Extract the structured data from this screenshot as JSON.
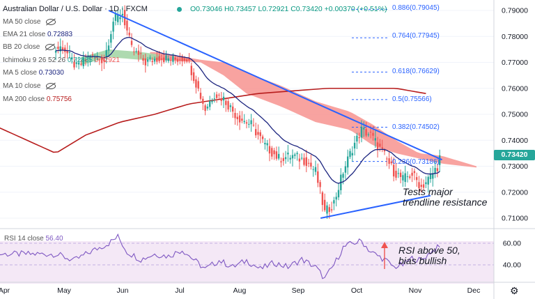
{
  "header": {
    "title": "Australian Dollar / U.S. Dollar · 1D · FXCM",
    "ohlc": "O0.73046 H0.73457 L0.72921 C0.73420 +0.00370 (+0.51%)"
  },
  "indicators": {
    "ma50": "MA 50 close",
    "ema21": "EMA 21 close",
    "ema21_value": "0.72883",
    "bb20": "BB 20 close",
    "ichimoku": "Ichimoku 9 26 52 26",
    "ichimoku_v1": "0.72885",
    "ichimoku_v2": "0.72921",
    "ma5": "MA 5 close",
    "ma5_value": "0.73030",
    "ma10": "MA 10 close",
    "ma200": "MA 200 close",
    "ma200_value": "0.75756"
  },
  "annotations": {
    "trend_line1": "Tests major",
    "trend_line2": "trendline resistance",
    "rsi_line1": "RSI above 50,",
    "rsi_line2": "bias bullish"
  },
  "rsi": {
    "label": "RSI 14 close",
    "value": "56.40"
  },
  "price_tag": "0.73420",
  "colors": {
    "bull": "#26a69a",
    "bear": "#ef5350",
    "trend": "#2962ff",
    "ema21": "#1a237e",
    "ma200": "#b71c1c",
    "rsi": "#7e57c2",
    "fib": "#2962ff",
    "cloud_bear": "#f7938f",
    "cloud_bull": "#a5d6a7"
  },
  "chart_data": {
    "type": "candlestick",
    "title": "Australian Dollar / U.S. Dollar · 1D · FXCM",
    "price_ylim": [
      0.705,
      0.792
    ],
    "rsi_ylim": [
      25,
      68
    ],
    "y_ticks": [
      "0.79000",
      "0.78000",
      "0.77000",
      "0.76000",
      "0.75000",
      "0.74000",
      "0.73000",
      "0.72000",
      "0.71000"
    ],
    "rsi_ticks": [
      "60.00",
      "40.00"
    ],
    "x_ticks": [
      "Apr",
      "May",
      "Jun",
      "Jul",
      "Aug",
      "Sep",
      "Oct",
      "Nov",
      "Dec"
    ],
    "price_key": [
      [
        -3,
        0.775
      ],
      [
        0,
        0.776
      ],
      [
        6,
        0.768
      ],
      [
        12,
        0.772
      ],
      [
        18,
        0.771
      ],
      [
        22,
        0.786
      ],
      [
        26,
        0.789
      ],
      [
        30,
        0.775
      ],
      [
        36,
        0.77
      ],
      [
        42,
        0.772
      ],
      [
        48,
        0.771
      ],
      [
        54,
        0.772
      ],
      [
        58,
        0.762
      ],
      [
        62,
        0.752
      ],
      [
        66,
        0.758
      ],
      [
        70,
        0.756
      ],
      [
        76,
        0.749
      ],
      [
        82,
        0.746
      ],
      [
        88,
        0.738
      ],
      [
        94,
        0.733
      ],
      [
        100,
        0.734
      ],
      [
        106,
        0.732
      ],
      [
        110,
        0.728
      ],
      [
        114,
        0.712
      ],
      [
        118,
        0.716
      ],
      [
        122,
        0.728
      ],
      [
        126,
        0.737
      ],
      [
        130,
        0.744
      ],
      [
        134,
        0.742
      ],
      [
        140,
        0.734
      ],
      [
        144,
        0.728
      ],
      [
        148,
        0.725
      ],
      [
        152,
        0.727
      ],
      [
        156,
        0.722
      ],
      [
        160,
        0.726
      ],
      [
        163,
        0.73
      ],
      [
        164,
        0.734
      ]
    ],
    "ma200_key": [
      [
        -3,
        0.735
      ],
      [
        10,
        0.742
      ],
      [
        25,
        0.747
      ],
      [
        40,
        0.75
      ],
      [
        55,
        0.754
      ],
      [
        70,
        0.756
      ],
      [
        85,
        0.758
      ],
      [
        100,
        0.759
      ],
      [
        115,
        0.76
      ],
      [
        130,
        0.76
      ],
      [
        145,
        0.76
      ],
      [
        158,
        0.758
      ]
    ],
    "fib_levels": [
      {
        "label": "0.886(0.79045)",
        "value": 0.79045
      },
      {
        "label": "0.764(0.77945)",
        "value": 0.77945
      },
      {
        "label": "0.618(0.76629)",
        "value": 0.76629
      },
      {
        "label": "0.5(0.75566)",
        "value": 0.75566
      },
      {
        "label": "0.382(0.74502)",
        "value": 0.74502
      },
      {
        "label": "0.236(0.73186)",
        "value": 0.73186
      }
    ],
    "descending_trendline": [
      [
        20,
        0.79
      ],
      [
        165,
        0.7325
      ]
    ],
    "ascending_trendline": [
      [
        114,
        0.71
      ],
      [
        160,
        0.7187
      ]
    ],
    "rsi_key": [
      [
        -3,
        50
      ],
      [
        5,
        44
      ],
      [
        12,
        52
      ],
      [
        20,
        60
      ],
      [
        24,
        66
      ],
      [
        28,
        52
      ],
      [
        34,
        45
      ],
      [
        40,
        50
      ],
      [
        46,
        48
      ],
      [
        52,
        54
      ],
      [
        58,
        43
      ],
      [
        62,
        36
      ],
      [
        68,
        44
      ],
      [
        74,
        38
      ],
      [
        80,
        44
      ],
      [
        86,
        36
      ],
      [
        92,
        42
      ],
      [
        98,
        38
      ],
      [
        104,
        45
      ],
      [
        110,
        38
      ],
      [
        114,
        27
      ],
      [
        118,
        40
      ],
      [
        122,
        56
      ],
      [
        126,
        60
      ],
      [
        130,
        62
      ],
      [
        134,
        52
      ],
      [
        140,
        45
      ],
      [
        144,
        38
      ],
      [
        148,
        40
      ],
      [
        152,
        46
      ],
      [
        156,
        44
      ],
      [
        160,
        52
      ],
      [
        164,
        57
      ]
    ],
    "last_price": 0.7342,
    "last_rsi": 56.4
  }
}
